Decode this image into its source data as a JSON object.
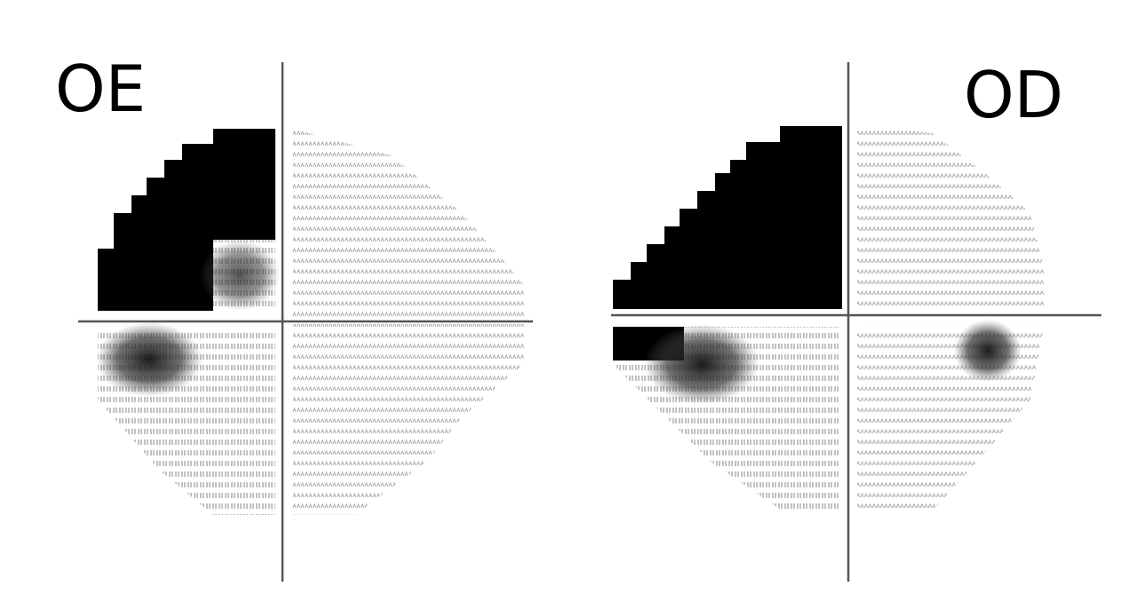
{
  "panels": [
    {
      "label": "OE"
    },
    {
      "label": "OD"
    }
  ]
}
